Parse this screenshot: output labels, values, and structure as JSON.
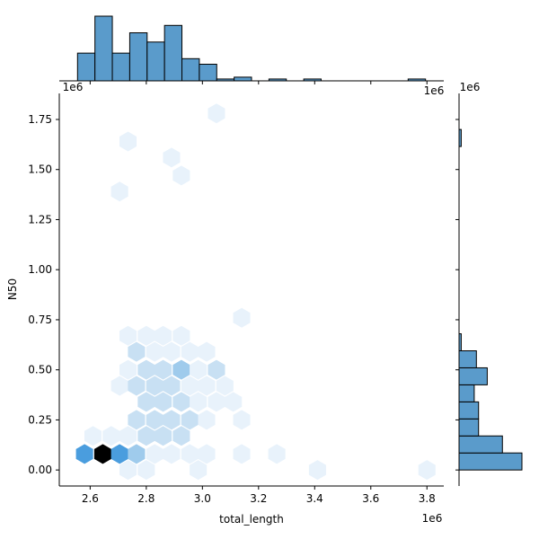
{
  "chart_data": {
    "type": "hexbin",
    "kind": "jointplot",
    "xlabel": "total_length",
    "ylabel": "N50",
    "x_offset_label": "1e6",
    "y_offset_label": "1e6",
    "xlim": [
      2.49,
      3.86
    ],
    "ylim": [
      -0.08,
      1.88
    ],
    "x_ticks": [
      2.6,
      2.8,
      3.0,
      3.2,
      3.4,
      3.6,
      3.8
    ],
    "x_tick_labels": [
      "2.6",
      "2.8",
      "3.0",
      "3.2",
      "3.4",
      "3.6",
      "3.8"
    ],
    "y_ticks": [
      0.0,
      0.25,
      0.5,
      0.75,
      1.0,
      1.25,
      1.5,
      1.75
    ],
    "y_tick_labels": [
      "0.00",
      "0.25",
      "0.50",
      "0.75",
      "1.00",
      "1.25",
      "1.50",
      "1.75"
    ],
    "hex_color_scale": [
      "#ffffff",
      "#e8f2fb",
      "#c8e0f3",
      "#9fcbec",
      "#4a9dde",
      "#000000"
    ],
    "hexbins": [
      {
        "x": 2.58,
        "y": 0.08,
        "level": 4
      },
      {
        "x": 2.645,
        "y": 0.08,
        "level": 5
      },
      {
        "x": 2.705,
        "y": 0.08,
        "level": 4
      },
      {
        "x": 2.765,
        "y": 0.08,
        "level": 3
      },
      {
        "x": 2.83,
        "y": 0.08,
        "level": 1
      },
      {
        "x": 2.89,
        "y": 0.08,
        "level": 1
      },
      {
        "x": 2.955,
        "y": 0.08,
        "level": 1
      },
      {
        "x": 3.015,
        "y": 0.08,
        "level": 1
      },
      {
        "x": 3.14,
        "y": 0.08,
        "level": 1
      },
      {
        "x": 3.265,
        "y": 0.08,
        "level": 1
      },
      {
        "x": 2.61,
        "y": 0.17,
        "level": 1
      },
      {
        "x": 2.675,
        "y": 0.17,
        "level": 1
      },
      {
        "x": 2.735,
        "y": 0.17,
        "level": 1
      },
      {
        "x": 2.8,
        "y": 0.17,
        "level": 2
      },
      {
        "x": 2.86,
        "y": 0.17,
        "level": 2
      },
      {
        "x": 2.925,
        "y": 0.17,
        "level": 2
      },
      {
        "x": 2.735,
        "y": -0.0,
        "level": 1
      },
      {
        "x": 2.8,
        "y": -0.0,
        "level": 1
      },
      {
        "x": 2.985,
        "y": -0.0,
        "level": 1
      },
      {
        "x": 3.41,
        "y": -0.0,
        "level": 1
      },
      {
        "x": 3.8,
        "y": -0.0,
        "level": 1
      },
      {
        "x": 2.765,
        "y": 0.25,
        "level": 2
      },
      {
        "x": 2.83,
        "y": 0.25,
        "level": 2
      },
      {
        "x": 2.89,
        "y": 0.25,
        "level": 2
      },
      {
        "x": 2.955,
        "y": 0.25,
        "level": 2
      },
      {
        "x": 3.015,
        "y": 0.25,
        "level": 1
      },
      {
        "x": 3.14,
        "y": 0.25,
        "level": 1
      },
      {
        "x": 2.8,
        "y": 0.34,
        "level": 2
      },
      {
        "x": 2.86,
        "y": 0.34,
        "level": 2
      },
      {
        "x": 2.925,
        "y": 0.34,
        "level": 2
      },
      {
        "x": 2.985,
        "y": 0.34,
        "level": 1
      },
      {
        "x": 3.05,
        "y": 0.34,
        "level": 1
      },
      {
        "x": 3.11,
        "y": 0.34,
        "level": 1
      },
      {
        "x": 2.705,
        "y": 0.42,
        "level": 1
      },
      {
        "x": 2.765,
        "y": 0.42,
        "level": 2
      },
      {
        "x": 2.83,
        "y": 0.42,
        "level": 2
      },
      {
        "x": 2.89,
        "y": 0.42,
        "level": 2
      },
      {
        "x": 2.955,
        "y": 0.42,
        "level": 1
      },
      {
        "x": 3.015,
        "y": 0.42,
        "level": 1
      },
      {
        "x": 3.08,
        "y": 0.42,
        "level": 1
      },
      {
        "x": 2.735,
        "y": 0.5,
        "level": 1
      },
      {
        "x": 2.8,
        "y": 0.5,
        "level": 2
      },
      {
        "x": 2.86,
        "y": 0.5,
        "level": 2
      },
      {
        "x": 2.925,
        "y": 0.5,
        "level": 3
      },
      {
        "x": 2.985,
        "y": 0.5,
        "level": 1
      },
      {
        "x": 3.05,
        "y": 0.5,
        "level": 2
      },
      {
        "x": 2.765,
        "y": 0.59,
        "level": 2
      },
      {
        "x": 2.83,
        "y": 0.59,
        "level": 1
      },
      {
        "x": 2.89,
        "y": 0.59,
        "level": 1
      },
      {
        "x": 2.955,
        "y": 0.59,
        "level": 1
      },
      {
        "x": 3.015,
        "y": 0.59,
        "level": 1
      },
      {
        "x": 2.735,
        "y": 0.67,
        "level": 1
      },
      {
        "x": 2.8,
        "y": 0.67,
        "level": 1
      },
      {
        "x": 2.86,
        "y": 0.67,
        "level": 1
      },
      {
        "x": 2.925,
        "y": 0.67,
        "level": 1
      },
      {
        "x": 3.14,
        "y": 0.76,
        "level": 1
      },
      {
        "x": 2.705,
        "y": 1.39,
        "level": 1
      },
      {
        "x": 2.925,
        "y": 1.47,
        "level": 1
      },
      {
        "x": 2.89,
        "y": 1.56,
        "level": 1
      },
      {
        "x": 2.735,
        "y": 1.64,
        "level": 1
      },
      {
        "x": 3.05,
        "y": 1.78,
        "level": 1
      }
    ],
    "x_marginal": {
      "bin_edges": [
        2.555,
        2.617,
        2.679,
        2.741,
        2.803,
        2.865,
        2.927,
        2.989,
        3.051,
        3.113,
        3.175,
        3.237,
        3.299,
        3.361,
        3.423,
        3.485,
        3.547,
        3.609,
        3.671,
        3.733,
        3.795
      ],
      "counts": [
        15,
        35,
        15,
        26,
        21,
        30,
        12,
        9,
        1,
        2,
        0,
        1,
        0,
        1,
        0,
        0,
        0,
        0,
        0,
        1
      ]
    },
    "y_marginal": {
      "bin_edges": [
        0.0,
        0.085,
        0.17,
        0.255,
        0.34,
        0.425,
        0.51,
        0.595,
        0.68,
        0.765,
        0.85,
        0.935,
        1.02,
        1.105,
        1.19,
        1.275,
        1.36,
        1.445,
        1.53,
        1.615,
        1.7
      ],
      "counts": [
        29,
        20,
        9,
        9,
        7,
        13,
        8,
        1,
        0,
        0,
        0,
        0,
        0,
        0,
        0,
        0,
        0,
        0,
        0,
        1
      ]
    },
    "bar_fill": "#5a9bcb",
    "bar_edge": "#000000"
  }
}
